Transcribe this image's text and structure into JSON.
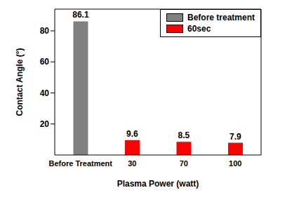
{
  "chart_data": {
    "type": "bar",
    "categories": [
      "Before Treatment",
      "30",
      "70",
      "100"
    ],
    "series": [
      {
        "name": "Before treatment",
        "color": "#808080",
        "values": [
          86.1,
          null,
          null,
          null
        ]
      },
      {
        "name": "60sec",
        "color": "#ff0000",
        "values": [
          null,
          9.6,
          8.5,
          7.9
        ]
      }
    ],
    "x_label": "Plasma Power (watt)",
    "y_label": "Contact Angle (°)",
    "ylim": [
      0,
      94
    ],
    "yticks": [
      20,
      40,
      60,
      80
    ],
    "grid": false,
    "legend": "upper right",
    "data_labels": true
  }
}
